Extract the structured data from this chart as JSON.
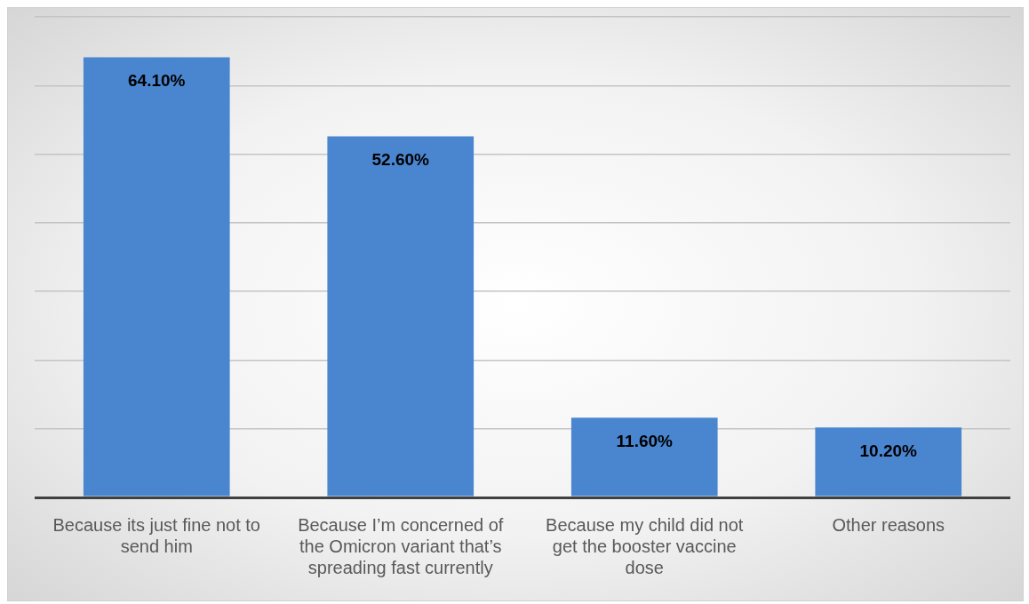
{
  "chart_data": {
    "type": "bar",
    "categories": [
      "Because its just fine not to send him",
      "Because I’m concerned of the Omicron variant that’s spreading fast currently",
      "Because my child did not get the booster vaccine dose",
      "Other reasons"
    ],
    "values": [
      64.1,
      52.6,
      11.6,
      10.2
    ],
    "value_labels": [
      "64.10%",
      "52.60%",
      "11.60%",
      "10.20%"
    ],
    "color": "#4a86d0",
    "ylim": [
      0,
      70
    ],
    "yticks": [
      {
        "value": 0,
        "label": null
      },
      {
        "value": 10,
        "label": null
      },
      {
        "value": 20,
        "label": null
      },
      {
        "value": 30,
        "label": null
      },
      {
        "value": 40,
        "label": null
      },
      {
        "value": 50,
        "label": null
      },
      {
        "value": 60,
        "label": null
      },
      {
        "value": 70,
        "label": null
      }
    ],
    "tick_labels": "x",
    "grid": "y"
  }
}
